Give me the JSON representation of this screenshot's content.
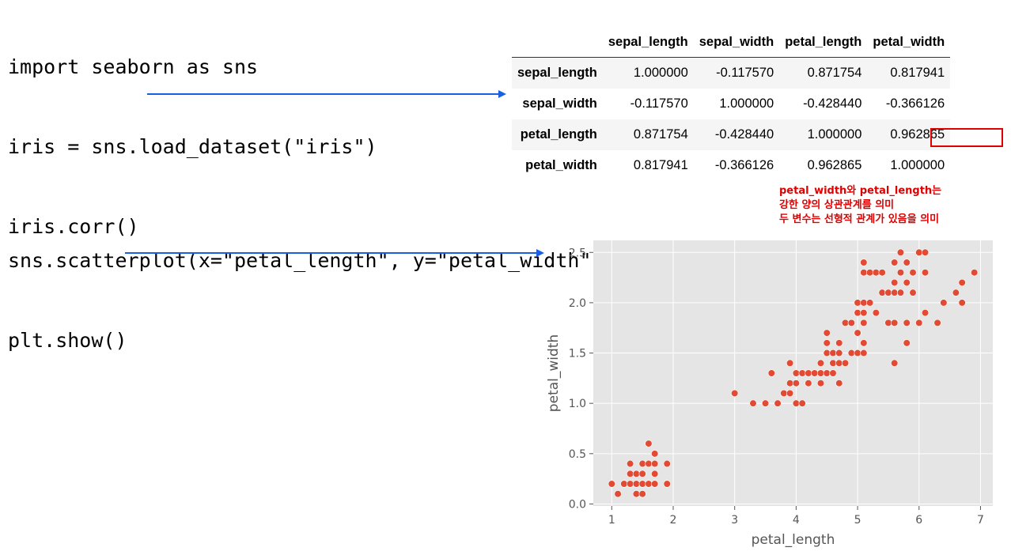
{
  "code_block_1": {
    "lines": [
      "import seaborn as sns",
      "iris = sns.load_dataset(\"iris\")",
      "iris.corr()"
    ]
  },
  "code_block_2": {
    "lines": [
      "sns.scatterplot(x=\"petal_length\", y=\"petal_width\", data=iris)",
      "plt.show()"
    ]
  },
  "corr_table": {
    "columns": [
      "sepal_length",
      "sepal_width",
      "petal_length",
      "petal_width"
    ],
    "rows": [
      {
        "label": "sepal_length",
        "values": [
          "1.000000",
          "-0.117570",
          "0.871754",
          "0.817941"
        ]
      },
      {
        "label": "sepal_width",
        "values": [
          "-0.117570",
          "1.000000",
          "-0.428440",
          "-0.366126"
        ]
      },
      {
        "label": "petal_length",
        "values": [
          "0.871754",
          "-0.428440",
          "1.000000",
          "0.962865"
        ]
      },
      {
        "label": "petal_width",
        "values": [
          "0.817941",
          "-0.366126",
          "0.962865",
          "1.000000"
        ]
      }
    ],
    "highlighted_value": "0.962865"
  },
  "annotation": {
    "lines": [
      "petal_width와 petal_length는",
      "강한 양의 상관관계를 의미",
      "두 변수는 선형적 관계가 있음을 의미"
    ],
    "color": "#e00000"
  },
  "colors": {
    "arrow": "#1a5fe0",
    "point": "#e24a33",
    "plot_bg": "#e5e5e5"
  },
  "chart_data": {
    "type": "scatter",
    "xlabel": "petal_length",
    "ylabel": "petal_width",
    "xlim": [
      0.7,
      7.2
    ],
    "ylim": [
      -0.02,
      2.62
    ],
    "xticks": [
      1,
      2,
      3,
      4,
      5,
      6,
      7
    ],
    "yticks": [
      "0.0",
      "0.5",
      "1.0",
      "1.5",
      "2.0",
      "2.5"
    ],
    "grid": true,
    "points": [
      [
        1.0,
        0.2
      ],
      [
        1.1,
        0.1
      ],
      [
        1.2,
        0.2
      ],
      [
        1.3,
        0.2
      ],
      [
        1.3,
        0.3
      ],
      [
        1.3,
        0.4
      ],
      [
        1.4,
        0.1
      ],
      [
        1.4,
        0.2
      ],
      [
        1.4,
        0.3
      ],
      [
        1.5,
        0.1
      ],
      [
        1.5,
        0.2
      ],
      [
        1.5,
        0.3
      ],
      [
        1.5,
        0.4
      ],
      [
        1.6,
        0.2
      ],
      [
        1.6,
        0.4
      ],
      [
        1.6,
        0.6
      ],
      [
        1.7,
        0.2
      ],
      [
        1.7,
        0.3
      ],
      [
        1.7,
        0.4
      ],
      [
        1.7,
        0.5
      ],
      [
        1.9,
        0.2
      ],
      [
        1.9,
        0.4
      ],
      [
        3.0,
        1.1
      ],
      [
        3.3,
        1.0
      ],
      [
        3.5,
        1.0
      ],
      [
        3.6,
        1.3
      ],
      [
        3.7,
        1.0
      ],
      [
        3.8,
        1.1
      ],
      [
        3.9,
        1.1
      ],
      [
        3.9,
        1.2
      ],
      [
        3.9,
        1.4
      ],
      [
        4.0,
        1.0
      ],
      [
        4.0,
        1.2
      ],
      [
        4.0,
        1.3
      ],
      [
        4.1,
        1.0
      ],
      [
        4.1,
        1.3
      ],
      [
        4.2,
        1.2
      ],
      [
        4.2,
        1.3
      ],
      [
        4.3,
        1.3
      ],
      [
        4.4,
        1.2
      ],
      [
        4.4,
        1.3
      ],
      [
        4.4,
        1.4
      ],
      [
        4.5,
        1.3
      ],
      [
        4.5,
        1.5
      ],
      [
        4.5,
        1.6
      ],
      [
        4.5,
        1.7
      ],
      [
        4.6,
        1.3
      ],
      [
        4.6,
        1.4
      ],
      [
        4.6,
        1.5
      ],
      [
        4.7,
        1.2
      ],
      [
        4.7,
        1.4
      ],
      [
        4.7,
        1.5
      ],
      [
        4.7,
        1.6
      ],
      [
        4.8,
        1.4
      ],
      [
        4.8,
        1.8
      ],
      [
        4.9,
        1.5
      ],
      [
        4.9,
        1.8
      ],
      [
        5.0,
        1.5
      ],
      [
        5.0,
        1.7
      ],
      [
        5.0,
        2.0
      ],
      [
        5.1,
        1.5
      ],
      [
        5.1,
        1.6
      ],
      [
        5.1,
        1.8
      ],
      [
        5.1,
        1.9
      ],
      [
        5.1,
        2.0
      ],
      [
        5.1,
        2.3
      ],
      [
        5.1,
        2.4
      ],
      [
        5.2,
        2.0
      ],
      [
        5.2,
        2.3
      ],
      [
        5.3,
        1.9
      ],
      [
        5.3,
        2.3
      ],
      [
        5.4,
        2.1
      ],
      [
        5.4,
        2.3
      ],
      [
        5.5,
        1.8
      ],
      [
        5.5,
        2.1
      ],
      [
        5.6,
        1.4
      ],
      [
        5.6,
        1.8
      ],
      [
        5.6,
        2.1
      ],
      [
        5.6,
        2.2
      ],
      [
        5.6,
        2.4
      ],
      [
        5.7,
        2.1
      ],
      [
        5.7,
        2.3
      ],
      [
        5.7,
        2.5
      ],
      [
        5.8,
        1.6
      ],
      [
        5.8,
        1.8
      ],
      [
        5.8,
        2.2
      ],
      [
        5.9,
        2.1
      ],
      [
        5.9,
        2.3
      ],
      [
        6.0,
        1.8
      ],
      [
        6.0,
        2.5
      ],
      [
        6.1,
        1.9
      ],
      [
        6.1,
        2.3
      ],
      [
        6.1,
        2.5
      ],
      [
        6.3,
        1.8
      ],
      [
        6.4,
        2.0
      ],
      [
        6.6,
        2.1
      ],
      [
        6.7,
        2.0
      ],
      [
        6.7,
        2.2
      ],
      [
        6.9,
        2.3
      ],
      [
        5.0,
        1.9
      ],
      [
        5.1,
        1.9
      ],
      [
        4.9,
        1.8
      ],
      [
        5.8,
        2.4
      ]
    ]
  }
}
